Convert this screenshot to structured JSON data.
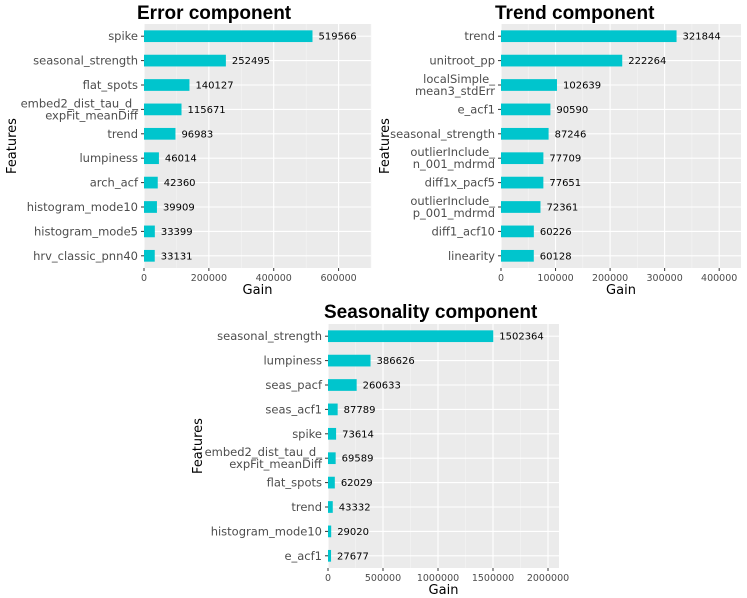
{
  "chart_data": [
    {
      "type": "bar",
      "orientation": "horizontal",
      "title": "Error component",
      "xlabel": "Gain",
      "ylabel": "Features",
      "xlim": [
        0,
        700000
      ],
      "xticks": [
        0,
        200000,
        400000,
        600000
      ],
      "categories": [
        "spike",
        "seasonal_strength",
        "flat_spots",
        "embed2_dist_tau_d_\nexpFit_meanDiff",
        "trend",
        "lumpiness",
        "arch_acf",
        "histogram_mode10",
        "histogram_mode5",
        "hrv_classic_pnn40"
      ],
      "values": [
        519566,
        252495,
        140127,
        115671,
        96983,
        46014,
        42360,
        39909,
        33399,
        33131
      ],
      "bar_color": "#00c5cd"
    },
    {
      "type": "bar",
      "orientation": "horizontal",
      "title": "Trend component",
      "xlabel": "Gain",
      "ylabel": "Features",
      "xlim": [
        0,
        440000
      ],
      "xticks": [
        0,
        100000,
        200000,
        300000,
        400000
      ],
      "categories": [
        "trend",
        "unitroot_pp",
        "localSimple_\nmean3_stdErr",
        "e_acf1",
        "seasonal_strength",
        "outlierInclude_\nn_001_mdrmd",
        "diff1x_pacf5",
        "outlierInclude_\np_001_mdrmd",
        "diff1_acf10",
        "linearity"
      ],
      "values": [
        321844,
        222264,
        102639,
        90590,
        87246,
        77709,
        77651,
        72361,
        60226,
        60128
      ],
      "bar_color": "#00c5cd"
    },
    {
      "type": "bar",
      "orientation": "horizontal",
      "title": "Seasonality component",
      "xlabel": "Gain",
      "ylabel": "Features",
      "xlim": [
        0,
        2100000
      ],
      "xticks": [
        0,
        500000,
        1000000,
        1500000,
        2000000
      ],
      "categories": [
        "seasonal_strength",
        "lumpiness",
        "seas_pacf",
        "seas_acf1",
        "spike",
        "embed2_dist_tau_d_\nexpFit_meanDiff",
        "flat_spots",
        "trend",
        "histogram_mode10",
        "e_acf1"
      ],
      "values": [
        1502364,
        386626,
        260633,
        87789,
        73614,
        69589,
        62029,
        43332,
        29020,
        27677
      ],
      "bar_color": "#00c5cd"
    }
  ]
}
